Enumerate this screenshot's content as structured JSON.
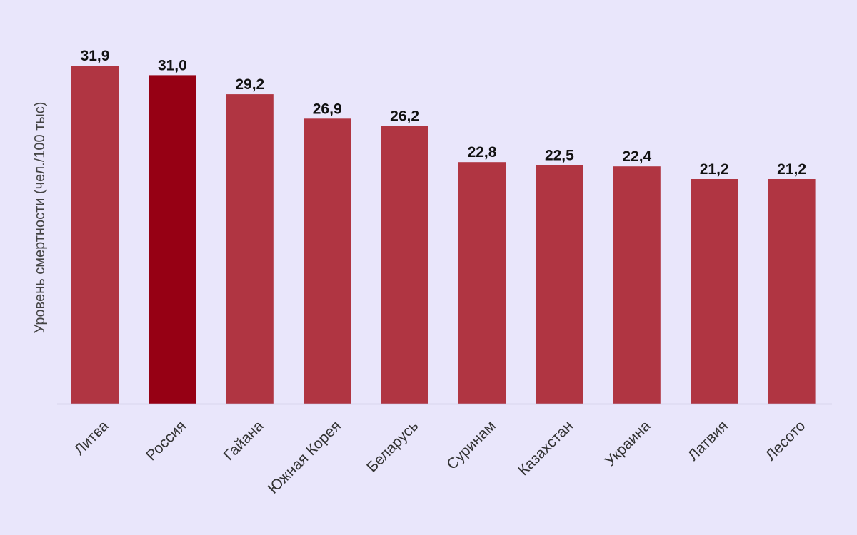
{
  "chart_data": {
    "type": "bar",
    "title": "",
    "xlabel": "",
    "ylabel": "Уровень смертности (чел./100 тыс)",
    "categories": [
      "Литва",
      "Россия",
      "Гайана",
      "Южная Корея",
      "Беларусь",
      "Суринам",
      "Казахстан",
      "Украина",
      "Латвия",
      "Лесото"
    ],
    "values": [
      31.9,
      31.0,
      29.2,
      26.9,
      26.2,
      22.8,
      22.5,
      22.4,
      21.2,
      21.2
    ],
    "value_labels": [
      "31,9",
      "31,0",
      "29,2",
      "26,9",
      "26,2",
      "22,8",
      "22,5",
      "22,4",
      "21,2",
      "21,2"
    ],
    "ylim": [
      0,
      31.9
    ],
    "grid": false,
    "legend": "none",
    "colors": {
      "bar": "#b03542",
      "highlight": "#960014",
      "highlight_category": "Россия",
      "background": "#e9e6fb",
      "axis": "#c9c4e0"
    }
  }
}
